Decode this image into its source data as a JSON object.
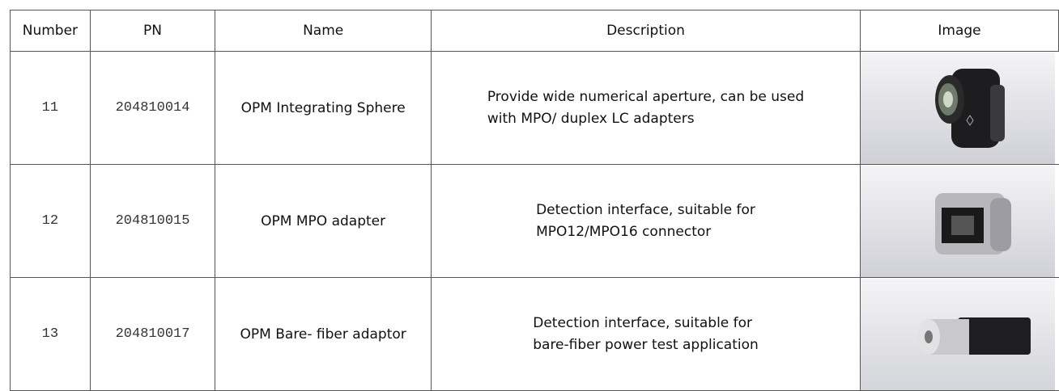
{
  "table": {
    "headers": [
      "Number",
      "PN",
      "Name",
      "Description",
      "Image"
    ],
    "rows": [
      {
        "number": "11",
        "pn": "204810014",
        "name": "OPM Integrating Sphere",
        "description": [
          "Provide wide numerical aperture, can be used",
          "with MPO/ duplex LC adapters"
        ]
      },
      {
        "number": "12",
        "pn": "204810015",
        "name": "OPM MPO adapter",
        "description": [
          "Detection interface, suitable for",
          "MPO12/MPO16 connector"
        ]
      },
      {
        "number": "13",
        "pn": "204810017",
        "name": "OPM Bare- fiber adaptor",
        "description": [
          "Detection interface, suitable for",
          "bare-fiber power test application"
        ]
      }
    ]
  }
}
